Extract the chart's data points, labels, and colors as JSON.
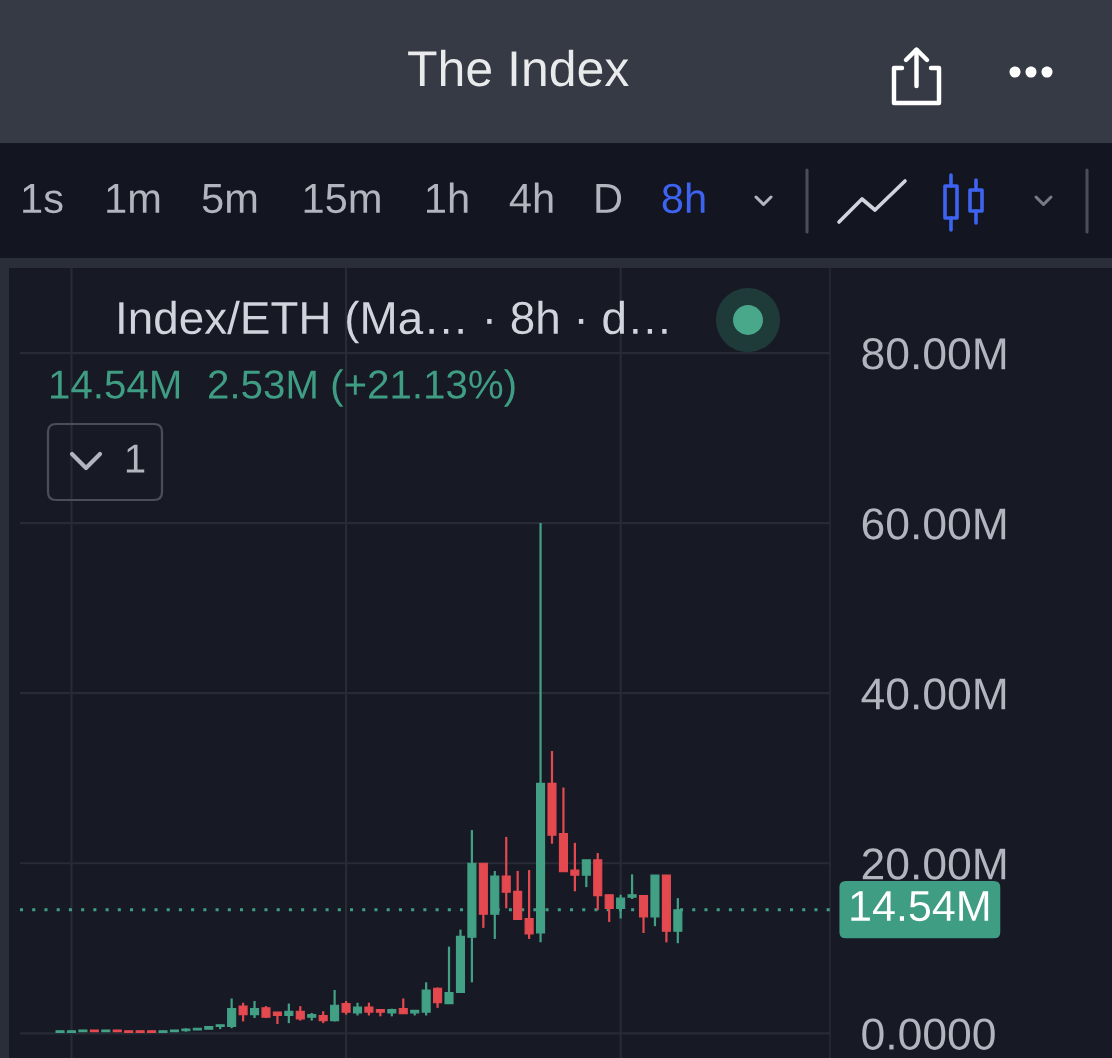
{
  "chart_data": {
    "type": "candlestick",
    "title": "The Index",
    "subtitle": "Index/ETH (Ma… · 8h · d…",
    "annotations": [
      "1s",
      "1m",
      "5m",
      "15m",
      "1h",
      "4h",
      "D",
      "8h",
      "14.54M",
      "2.53M (+21.13%)",
      "1"
    ],
    "categories": [
      null,
      null,
      null,
      null,
      null,
      null,
      null,
      null,
      null,
      null,
      null,
      null,
      null,
      null,
      null,
      null,
      null,
      null,
      null,
      null,
      null,
      null,
      null,
      null,
      null,
      null,
      null,
      null,
      null,
      null,
      null,
      null,
      null,
      null,
      null,
      null,
      null,
      null,
      null,
      null,
      null,
      null,
      null,
      null,
      null,
      null,
      null,
      null,
      null,
      null,
      null,
      null,
      null,
      null,
      null
    ],
    "ohlc": [
      [
        0.1,
        0.3,
        0.1,
        0.3
      ],
      [
        0.1,
        0.3,
        0.1,
        0.3
      ],
      [
        0.2,
        0.4,
        0.2,
        0.4
      ],
      [
        0.4,
        0.4,
        0.2,
        0.2
      ],
      [
        0.2,
        0.4,
        0.2,
        0.4
      ],
      [
        0.4,
        0.4,
        0.2,
        0.2
      ],
      [
        0.3,
        0.3,
        0.1,
        0.1
      ],
      [
        0.3,
        0.3,
        0.1,
        0.1
      ],
      [
        0.3,
        0.3,
        0.1,
        0.1
      ],
      [
        0.1,
        0.3,
        0.1,
        0.3
      ],
      [
        0.2,
        0.4,
        0.2,
        0.4
      ],
      [
        0.3,
        0.6,
        0.2,
        0.5
      ],
      [
        0.4,
        0.6,
        0.4,
        0.6
      ],
      [
        0.5,
        0.8,
        0.5,
        0.8
      ],
      [
        0.8,
        1.0,
        0.5,
        1.0
      ],
      [
        0.8,
        4.1,
        0.6,
        2.9
      ],
      [
        3.2,
        3.6,
        1.4,
        2.2
      ],
      [
        2.2,
        3.8,
        1.8,
        2.9
      ],
      [
        3.0,
        3.2,
        1.8,
        1.9
      ],
      [
        2.5,
        2.5,
        1.1,
        2.1
      ],
      [
        2.1,
        3.5,
        1.2,
        2.6
      ],
      [
        2.6,
        3.2,
        1.5,
        1.7
      ],
      [
        1.9,
        2.4,
        1.5,
        2.2
      ],
      [
        2.1,
        2.6,
        1.2,
        1.5
      ],
      [
        1.5,
        5.1,
        1.4,
        3.3
      ],
      [
        3.5,
        3.8,
        2.2,
        2.5
      ],
      [
        2.4,
        3.6,
        2.1,
        3.1
      ],
      [
        3.1,
        3.6,
        2.1,
        2.5
      ],
      [
        2.8,
        2.8,
        2.0,
        2.5
      ],
      [
        2.4,
        2.9,
        2.0,
        2.8
      ],
      [
        2.9,
        4.1,
        2.3,
        2.3
      ],
      [
        2.4,
        2.7,
        2.1,
        2.7
      ],
      [
        2.5,
        6.0,
        2.1,
        5.1
      ],
      [
        5.3,
        5.4,
        3.0,
        3.6
      ],
      [
        3.5,
        10.2,
        3.5,
        4.8
      ],
      [
        4.8,
        12.2,
        4.8,
        11.4
      ],
      [
        11.3,
        23.9,
        6.0,
        20.0
      ],
      [
        20.0,
        20.0,
        12.4,
        14.0
      ],
      [
        14.0,
        19.1,
        11.1,
        18.5
      ],
      [
        18.5,
        23.1,
        14.7,
        16.6
      ],
      [
        16.7,
        19.1,
        13.4,
        13.4
      ],
      [
        13.5,
        19.2,
        11.1,
        11.7
      ],
      [
        11.8,
        60.0,
        10.7,
        29.4
      ],
      [
        29.4,
        33.2,
        22.3,
        23.3
      ],
      [
        23.5,
        28.9,
        19.0,
        19.0
      ],
      [
        19.2,
        22.4,
        16.7,
        18.6
      ],
      [
        18.6,
        20.4,
        17.2,
        20.4
      ],
      [
        20.4,
        21.2,
        14.5,
        16.2
      ],
      [
        16.3,
        16.3,
        13.1,
        14.7
      ],
      [
        14.7,
        16.3,
        13.5,
        15.9
      ],
      [
        16.0,
        18.7,
        15.8,
        16.3
      ],
      [
        16.2,
        16.2,
        11.8,
        13.7
      ],
      [
        13.7,
        18.6,
        12.6,
        18.6
      ],
      [
        18.6,
        18.6,
        10.7,
        12.0
      ],
      [
        12.0,
        15.9,
        10.6,
        14.54
      ]
    ],
    "colors": [
      "#42a085",
      "#42a085",
      "#42a085",
      "#e4494f",
      "#42a085",
      "#e4494f",
      "#e4494f",
      "#e4494f",
      "#e4494f",
      "#42a085",
      "#42a085",
      "#42a085",
      "#42a085",
      "#42a085",
      "#42a085",
      "#42a085",
      "#e4494f",
      "#42a085",
      "#e4494f",
      "#e4494f",
      "#42a085",
      "#e4494f",
      "#42a085",
      "#e4494f",
      "#42a085",
      "#e4494f",
      "#42a085",
      "#e4494f",
      "#e4494f",
      "#42a085",
      "#e4494f",
      "#42a085",
      "#42a085",
      "#e4494f",
      "#42a085",
      "#42a085",
      "#42a085",
      "#e4494f",
      "#42a085",
      "#e4494f",
      "#e4494f",
      "#e4494f",
      "#42a085",
      "#e4494f",
      "#e4494f",
      "#e4494f",
      "#42a085",
      "#e4494f",
      "#e4494f",
      "#42a085",
      "#42a085",
      "#e4494f",
      "#42a085",
      "#e4494f",
      "#42a085"
    ],
    "ylim": [
      -2.9,
      90
    ],
    "yticks": [
      {
        "value": 0,
        "label": "0.0000"
      },
      {
        "value": 20,
        "label": "20.00M"
      },
      {
        "value": 40,
        "label": "40.00M"
      },
      {
        "value": 60,
        "label": "60.00M"
      },
      {
        "value": 80,
        "label": "80.00M"
      }
    ],
    "grid": true,
    "tick_labels": "y",
    "ref_lines": [
      {
        "axis": "y",
        "value": 14.54,
        "label": "14.54M",
        "color": "#3f9d83",
        "line_style": "dotted"
      }
    ]
  }
}
